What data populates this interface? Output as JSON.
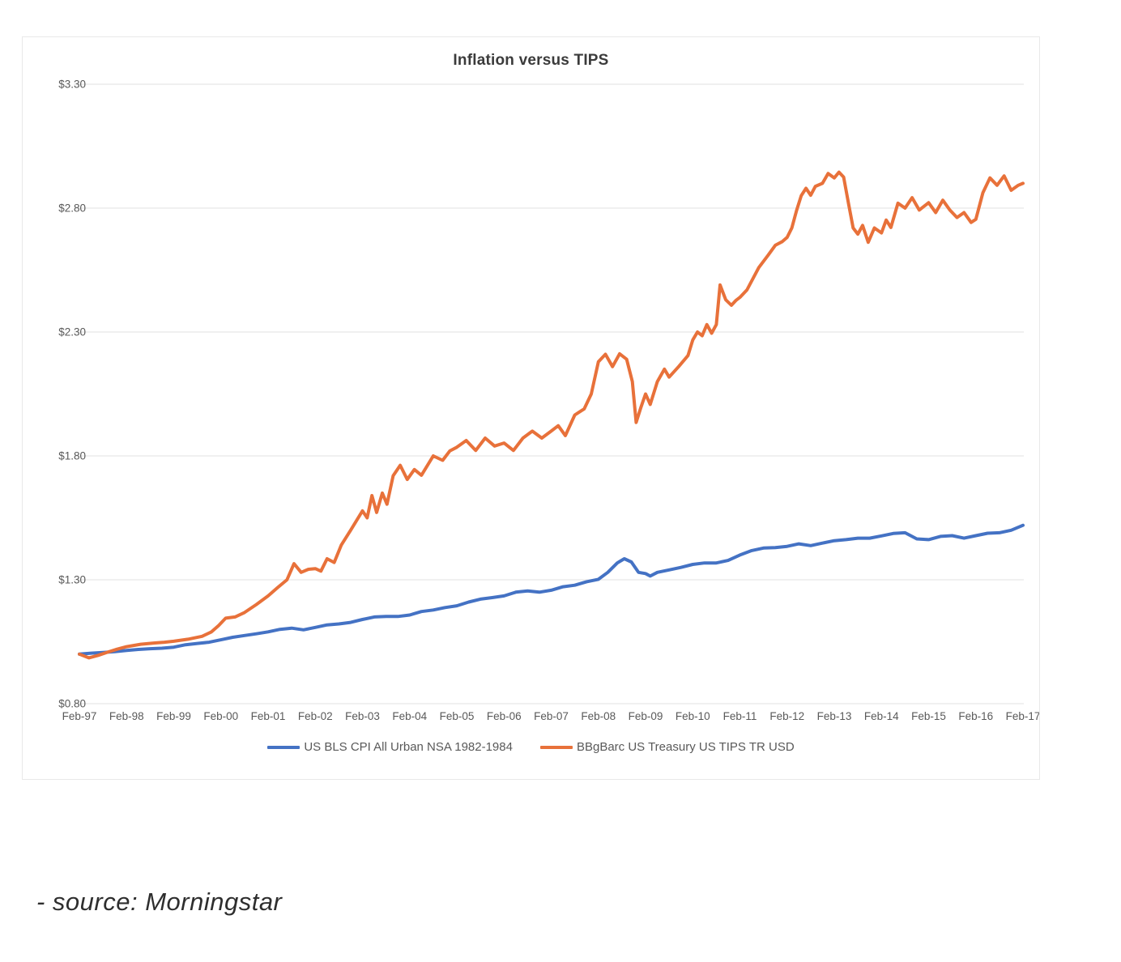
{
  "source_caption": "- source: Morningstar",
  "chart_data": {
    "type": "line",
    "title": "Inflation versus TIPS",
    "xlabel": "",
    "ylabel": "",
    "ylim": [
      0.8,
      3.3
    ],
    "grid": "horizontal",
    "legend_position": "bottom-center",
    "y_tick_labels": [
      "$3.30",
      "$2.80",
      "$2.30",
      "$1.80",
      "$1.30",
      "$0.80"
    ],
    "y_tick_values": [
      3.3,
      2.8,
      2.3,
      1.8,
      1.3,
      0.8
    ],
    "x_categories": [
      "Feb-97",
      "Feb-98",
      "Feb-99",
      "Feb-00",
      "Feb-01",
      "Feb-02",
      "Feb-03",
      "Feb-04",
      "Feb-05",
      "Feb-06",
      "Feb-07",
      "Feb-08",
      "Feb-09",
      "Feb-10",
      "Feb-11",
      "Feb-12",
      "Feb-13",
      "Feb-14",
      "Feb-15",
      "Feb-16",
      "Feb-17"
    ],
    "x_unit": "years since Feb-1997",
    "series": [
      {
        "name": "US BLS CPI All Urban NSA 1982-1984",
        "color": "#4472c4",
        "points": [
          [
            0,
            1.0
          ],
          [
            0.25,
            1.004
          ],
          [
            0.5,
            1.007
          ],
          [
            0.75,
            1.01
          ],
          [
            1,
            1.015
          ],
          [
            1.25,
            1.019
          ],
          [
            1.5,
            1.022
          ],
          [
            1.75,
            1.024
          ],
          [
            2,
            1.028
          ],
          [
            2.25,
            1.038
          ],
          [
            2.5,
            1.043
          ],
          [
            2.75,
            1.048
          ],
          [
            3,
            1.058
          ],
          [
            3.25,
            1.068
          ],
          [
            3.5,
            1.075
          ],
          [
            3.75,
            1.082
          ],
          [
            4,
            1.09
          ],
          [
            4.25,
            1.1
          ],
          [
            4.5,
            1.105
          ],
          [
            4.75,
            1.098
          ],
          [
            5,
            1.108
          ],
          [
            5.25,
            1.118
          ],
          [
            5.5,
            1.122
          ],
          [
            5.75,
            1.128
          ],
          [
            6,
            1.14
          ],
          [
            6.25,
            1.15
          ],
          [
            6.5,
            1.152
          ],
          [
            6.75,
            1.152
          ],
          [
            7,
            1.158
          ],
          [
            7.25,
            1.172
          ],
          [
            7.5,
            1.178
          ],
          [
            7.75,
            1.188
          ],
          [
            8,
            1.195
          ],
          [
            8.25,
            1.21
          ],
          [
            8.5,
            1.222
          ],
          [
            8.75,
            1.228
          ],
          [
            9,
            1.235
          ],
          [
            9.25,
            1.25
          ],
          [
            9.5,
            1.255
          ],
          [
            9.75,
            1.25
          ],
          [
            10,
            1.258
          ],
          [
            10.25,
            1.272
          ],
          [
            10.5,
            1.278
          ],
          [
            10.75,
            1.292
          ],
          [
            11,
            1.302
          ],
          [
            11.2,
            1.33
          ],
          [
            11.4,
            1.368
          ],
          [
            11.55,
            1.385
          ],
          [
            11.7,
            1.372
          ],
          [
            11.85,
            1.33
          ],
          [
            12,
            1.325
          ],
          [
            12.1,
            1.315
          ],
          [
            12.25,
            1.33
          ],
          [
            12.5,
            1.34
          ],
          [
            12.75,
            1.35
          ],
          [
            13,
            1.362
          ],
          [
            13.25,
            1.368
          ],
          [
            13.5,
            1.368
          ],
          [
            13.75,
            1.378
          ],
          [
            14,
            1.4
          ],
          [
            14.25,
            1.418
          ],
          [
            14.5,
            1.428
          ],
          [
            14.75,
            1.43
          ],
          [
            15,
            1.435
          ],
          [
            15.25,
            1.445
          ],
          [
            15.5,
            1.438
          ],
          [
            15.75,
            1.448
          ],
          [
            16,
            1.458
          ],
          [
            16.25,
            1.462
          ],
          [
            16.5,
            1.468
          ],
          [
            16.75,
            1.468
          ],
          [
            17,
            1.477
          ],
          [
            17.25,
            1.487
          ],
          [
            17.5,
            1.49
          ],
          [
            17.75,
            1.465
          ],
          [
            18,
            1.462
          ],
          [
            18.25,
            1.475
          ],
          [
            18.5,
            1.478
          ],
          [
            18.75,
            1.468
          ],
          [
            19,
            1.478
          ],
          [
            19.25,
            1.488
          ],
          [
            19.5,
            1.49
          ],
          [
            19.75,
            1.5
          ],
          [
            20,
            1.52
          ]
        ]
      },
      {
        "name": "BBgBarc US Treasury US TIPS TR USD",
        "color": "#e8713a",
        "points": [
          [
            0,
            1.0
          ],
          [
            0.2,
            0.985
          ],
          [
            0.4,
            0.995
          ],
          [
            0.6,
            1.008
          ],
          [
            0.8,
            1.02
          ],
          [
            1,
            1.03
          ],
          [
            1.3,
            1.04
          ],
          [
            1.6,
            1.045
          ],
          [
            1.8,
            1.048
          ],
          [
            2,
            1.052
          ],
          [
            2.3,
            1.06
          ],
          [
            2.6,
            1.072
          ],
          [
            2.8,
            1.09
          ],
          [
            2.95,
            1.115
          ],
          [
            3.1,
            1.145
          ],
          [
            3.3,
            1.15
          ],
          [
            3.5,
            1.168
          ],
          [
            3.75,
            1.2
          ],
          [
            4,
            1.235
          ],
          [
            4.2,
            1.268
          ],
          [
            4.4,
            1.3
          ],
          [
            4.55,
            1.365
          ],
          [
            4.7,
            1.33
          ],
          [
            4.85,
            1.342
          ],
          [
            5,
            1.345
          ],
          [
            5.12,
            1.335
          ],
          [
            5.25,
            1.385
          ],
          [
            5.4,
            1.37
          ],
          [
            5.55,
            1.44
          ],
          [
            5.75,
            1.5
          ],
          [
            6,
            1.578
          ],
          [
            6.1,
            1.55
          ],
          [
            6.2,
            1.64
          ],
          [
            6.3,
            1.572
          ],
          [
            6.42,
            1.65
          ],
          [
            6.52,
            1.605
          ],
          [
            6.65,
            1.72
          ],
          [
            6.8,
            1.762
          ],
          [
            6.95,
            1.705
          ],
          [
            7.1,
            1.745
          ],
          [
            7.25,
            1.722
          ],
          [
            7.5,
            1.8
          ],
          [
            7.7,
            1.782
          ],
          [
            7.85,
            1.82
          ],
          [
            8,
            1.835
          ],
          [
            8.2,
            1.862
          ],
          [
            8.4,
            1.822
          ],
          [
            8.6,
            1.872
          ],
          [
            8.8,
            1.84
          ],
          [
            9,
            1.852
          ],
          [
            9.2,
            1.822
          ],
          [
            9.4,
            1.872
          ],
          [
            9.6,
            1.9
          ],
          [
            9.8,
            1.872
          ],
          [
            10,
            1.9
          ],
          [
            10.15,
            1.922
          ],
          [
            10.3,
            1.882
          ],
          [
            10.5,
            1.965
          ],
          [
            10.7,
            1.99
          ],
          [
            10.85,
            2.05
          ],
          [
            11,
            2.18
          ],
          [
            11.15,
            2.21
          ],
          [
            11.3,
            2.16
          ],
          [
            11.45,
            2.212
          ],
          [
            11.6,
            2.19
          ],
          [
            11.72,
            2.1
          ],
          [
            11.8,
            1.935
          ],
          [
            11.9,
            1.995
          ],
          [
            12,
            2.05
          ],
          [
            12.1,
            2.008
          ],
          [
            12.25,
            2.1
          ],
          [
            12.4,
            2.15
          ],
          [
            12.5,
            2.118
          ],
          [
            12.7,
            2.16
          ],
          [
            12.9,
            2.205
          ],
          [
            13,
            2.268
          ],
          [
            13.1,
            2.3
          ],
          [
            13.2,
            2.285
          ],
          [
            13.3,
            2.33
          ],
          [
            13.4,
            2.295
          ],
          [
            13.5,
            2.33
          ],
          [
            13.58,
            2.49
          ],
          [
            13.7,
            2.43
          ],
          [
            13.82,
            2.408
          ],
          [
            13.92,
            2.428
          ],
          [
            14,
            2.44
          ],
          [
            14.15,
            2.47
          ],
          [
            14.4,
            2.56
          ],
          [
            14.6,
            2.61
          ],
          [
            14.75,
            2.65
          ],
          [
            14.9,
            2.665
          ],
          [
            15,
            2.682
          ],
          [
            15.1,
            2.72
          ],
          [
            15.2,
            2.79
          ],
          [
            15.3,
            2.85
          ],
          [
            15.4,
            2.88
          ],
          [
            15.5,
            2.852
          ],
          [
            15.6,
            2.888
          ],
          [
            15.75,
            2.9
          ],
          [
            15.87,
            2.94
          ],
          [
            16,
            2.922
          ],
          [
            16.1,
            2.945
          ],
          [
            16.2,
            2.925
          ],
          [
            16.3,
            2.82
          ],
          [
            16.4,
            2.72
          ],
          [
            16.5,
            2.695
          ],
          [
            16.6,
            2.73
          ],
          [
            16.72,
            2.662
          ],
          [
            16.85,
            2.72
          ],
          [
            17,
            2.7
          ],
          [
            17.1,
            2.752
          ],
          [
            17.2,
            2.722
          ],
          [
            17.35,
            2.82
          ],
          [
            17.5,
            2.8
          ],
          [
            17.65,
            2.842
          ],
          [
            17.8,
            2.792
          ],
          [
            18,
            2.822
          ],
          [
            18.15,
            2.782
          ],
          [
            18.3,
            2.832
          ],
          [
            18.45,
            2.792
          ],
          [
            18.6,
            2.762
          ],
          [
            18.75,
            2.782
          ],
          [
            18.9,
            2.742
          ],
          [
            19,
            2.755
          ],
          [
            19.15,
            2.862
          ],
          [
            19.3,
            2.922
          ],
          [
            19.45,
            2.892
          ],
          [
            19.6,
            2.93
          ],
          [
            19.75,
            2.872
          ],
          [
            19.9,
            2.892
          ],
          [
            20,
            2.9
          ]
        ]
      }
    ]
  }
}
